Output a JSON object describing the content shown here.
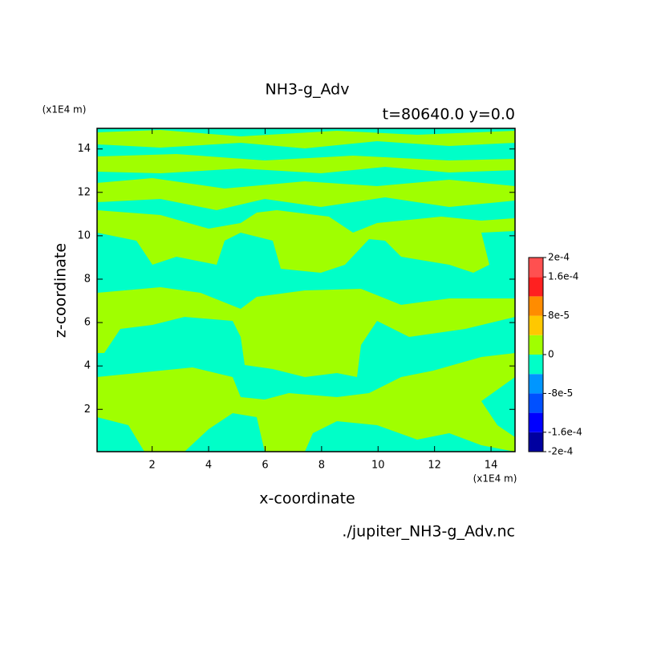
{
  "chart_data": {
    "type": "contour",
    "title": "NH3-g_Adv",
    "subtitle": "t=80640.0 y=0.0",
    "x_label": "x-coordinate",
    "y_label": "z-coordinate",
    "x_unit": "(x1E4 m)",
    "y_unit": "(x1E4 m)",
    "source": "./jupiter_NH3-g_Adv.nc",
    "xlim": [
      0.05,
      14.85
    ],
    "ylim": [
      0.05,
      14.95
    ],
    "xticks": [
      2,
      4,
      6,
      8,
      10,
      12,
      14
    ],
    "yticks": [
      2,
      4,
      6,
      8,
      10,
      12,
      14
    ],
    "levels": [
      -0.0002,
      -0.00016,
      -0.00012,
      -8e-05,
      -4e-05,
      0,
      4e-05,
      8e-05,
      0.00012,
      0.00016,
      0.0002
    ],
    "colors": [
      "#0000a0",
      "#0000ff",
      "#0050ff",
      "#0096ff",
      "#00ffc8",
      "#a0ff00",
      "#ffc800",
      "#ff8c00",
      "#ff2020",
      "#ff5050"
    ],
    "colorbar_ticks": [
      {
        "value": 0.0002,
        "label": "2e-4"
      },
      {
        "value": 0.00016,
        "label": "1.6e-4"
      },
      {
        "value": 8e-05,
        "label": "8e-5"
      },
      0,
      {
        "value": -8e-05,
        "label": "-8e-5"
      },
      {
        "value": -0.00016,
        "label": "-1.6e-4"
      },
      {
        "value": -0.0002,
        "label": "-2e-4"
      }
    ]
  }
}
